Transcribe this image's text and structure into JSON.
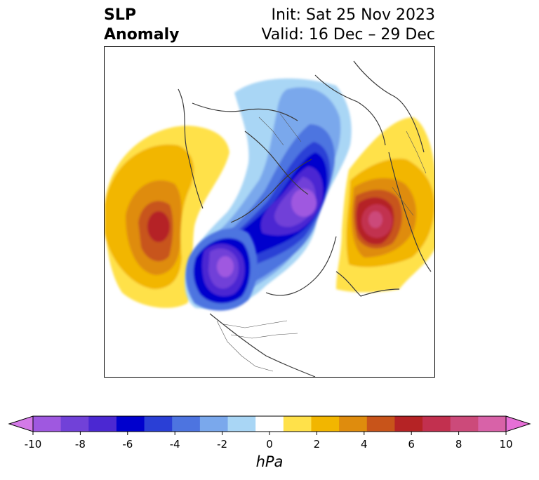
{
  "title": {
    "left_line1": "SLP",
    "left_line2": "Anomaly",
    "init": "Init: Sat 25 Nov 2023",
    "valid": "Valid: 16 Dec – 29 Dec"
  },
  "colorbar": {
    "unit": "hPa",
    "ticks": [
      "-10",
      "-8",
      "-6",
      "-4",
      "-2",
      "0",
      "2",
      "4",
      "6",
      "8",
      "10"
    ],
    "colors": [
      "#d47ae8",
      "#9f58e0",
      "#7141d8",
      "#4b28d2",
      "#0000cd",
      "#2a3fd6",
      "#4d74e0",
      "#7aa8ec",
      "#a9d6f5",
      "#ffffff",
      "#ffe14a",
      "#f2b600",
      "#df8c0d",
      "#c8541a",
      "#b52325",
      "#c2304f",
      "#cc4a7a",
      "#d862a8",
      "#e66fd6"
    ],
    "extend": "both"
  }
}
